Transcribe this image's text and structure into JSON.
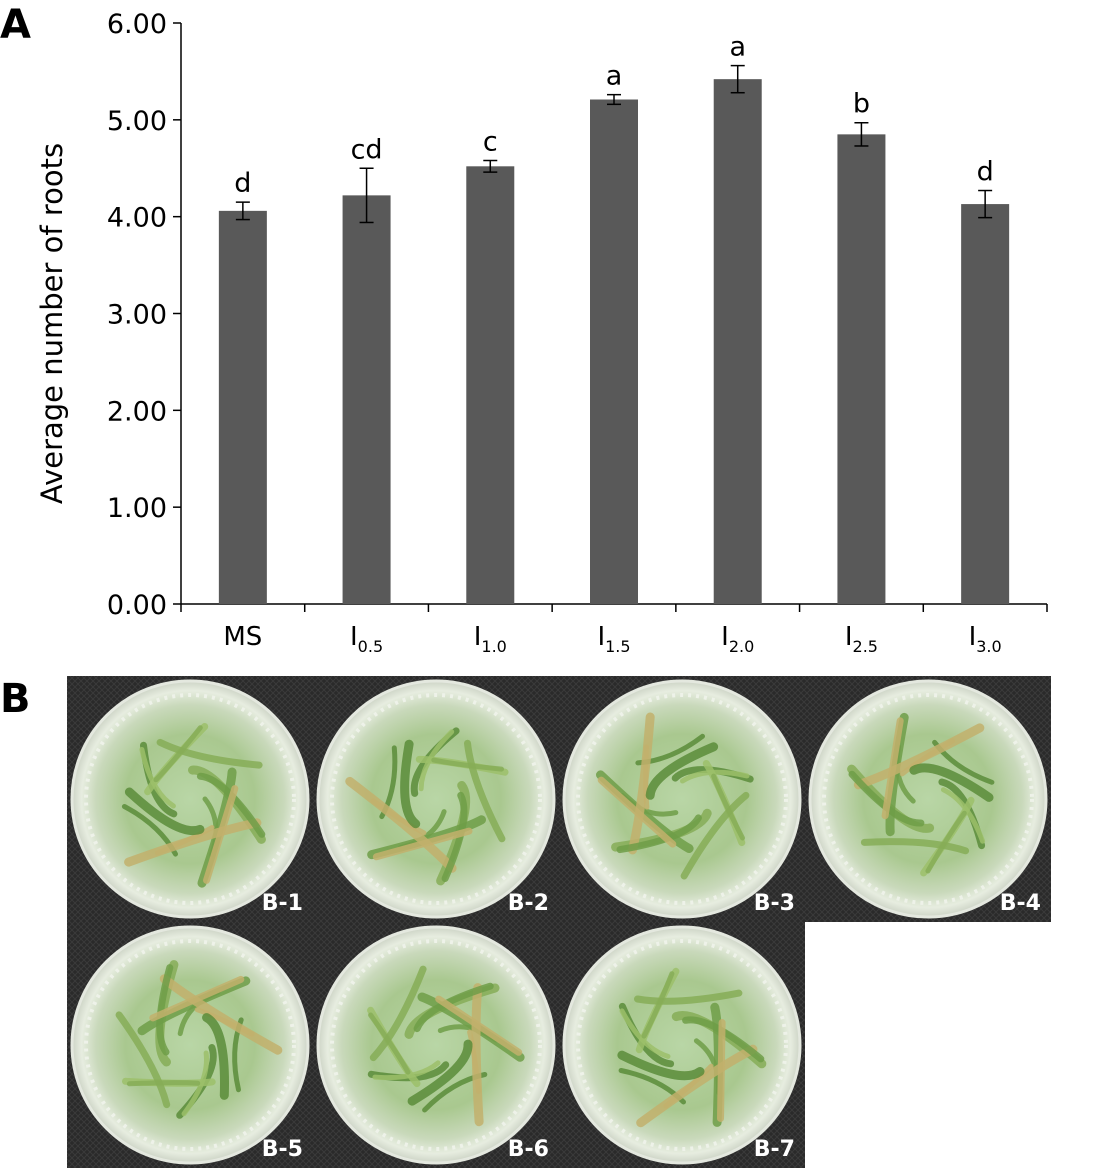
{
  "panels": {
    "a_label": "A",
    "b_label": "B"
  },
  "chart_data": {
    "type": "bar",
    "title": "",
    "xlabel": "",
    "ylabel": "Average number of roots",
    "ylim": [
      0,
      6
    ],
    "yticks": [
      "0.00",
      "1.00",
      "2.00",
      "3.00",
      "4.00",
      "5.00",
      "6.00"
    ],
    "categories": [
      {
        "base": "MS",
        "sub": ""
      },
      {
        "base": "I",
        "sub": "0.5"
      },
      {
        "base": "I",
        "sub": "1.0"
      },
      {
        "base": "I",
        "sub": "1.5"
      },
      {
        "base": "I",
        "sub": "2.0"
      },
      {
        "base": "I",
        "sub": "2.5"
      },
      {
        "base": "I",
        "sub": "3.0"
      }
    ],
    "values": [
      4.06,
      4.22,
      4.52,
      5.21,
      5.42,
      4.85,
      4.13
    ],
    "errors": [
      0.09,
      0.28,
      0.06,
      0.05,
      0.14,
      0.12,
      0.14
    ],
    "significance": [
      "d",
      "cd",
      "c",
      "a",
      "a",
      "b",
      "d"
    ],
    "bar_color": "#595959",
    "grid": false,
    "legend": "none"
  },
  "photos": {
    "labels": [
      "B-1",
      "B-2",
      "B-3",
      "B-4",
      "B-5",
      "B-6",
      "B-7"
    ]
  }
}
